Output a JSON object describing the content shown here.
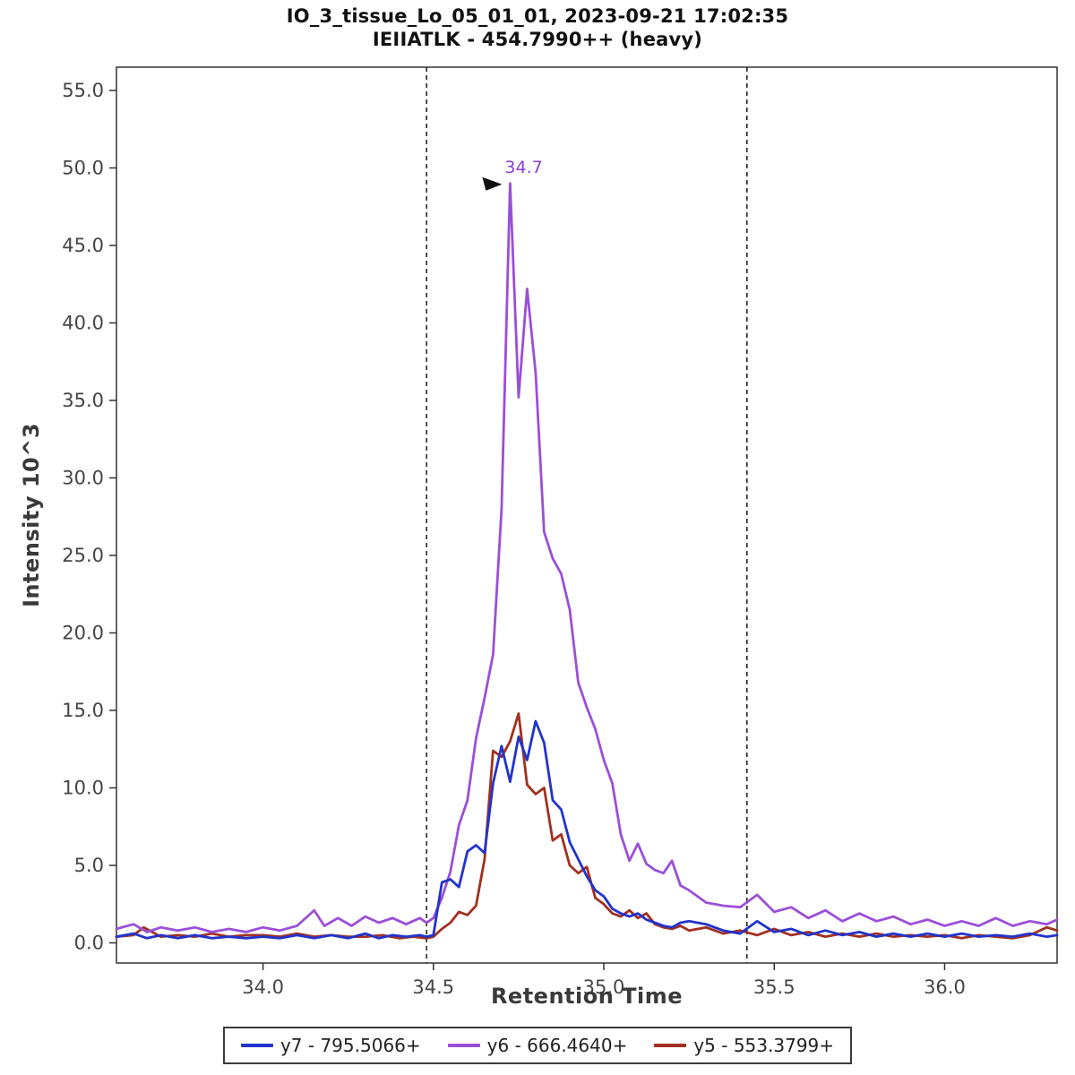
{
  "title": {
    "line1": "IO_3_tissue_Lo_05_01_01, 2023-09-21 17:02:35",
    "line2": "IEIIATLK - 454.7990++ (heavy)"
  },
  "chart_data": {
    "type": "line",
    "title": "IO_3_tissue_Lo_05_01_01, 2023-09-21 17:02:35 / IEIIATLK - 454.7990++ (heavy)",
    "xlabel": "Retention Time",
    "ylabel": "Intensity 10^3",
    "xlim": [
      33.57,
      36.33
    ],
    "ylim": [
      -1.3,
      56.5
    ],
    "grid": false,
    "legend_position": "bottom",
    "x_ticks": {
      "values": [
        34.0,
        34.5,
        35.0,
        35.5,
        36.0
      ],
      "labels": [
        "34.0",
        "34.5",
        "35.0",
        "35.5",
        "36.0"
      ]
    },
    "y_ticks": {
      "values": [
        0,
        5,
        10,
        15,
        20,
        25,
        30,
        35,
        40,
        45,
        50,
        55
      ],
      "labels": [
        "0.0",
        "5.0",
        "10.0",
        "15.0",
        "20.0",
        "25.0",
        "30.0",
        "35.0",
        "40.0",
        "45.0",
        "50.0",
        "55.0"
      ]
    },
    "integration_boundaries": [
      34.48,
      35.42
    ],
    "annotation": {
      "text": "34.7",
      "x": 34.725,
      "y": 49.0,
      "color": "#8a3fd0"
    },
    "series": [
      {
        "id": "y7",
        "name": "y7 - 795.5066+",
        "color": "#2233cc",
        "points": [
          [
            33.57,
            0.4
          ],
          [
            33.62,
            0.6
          ],
          [
            33.66,
            0.3
          ],
          [
            33.7,
            0.5
          ],
          [
            33.75,
            0.3
          ],
          [
            33.8,
            0.5
          ],
          [
            33.85,
            0.3
          ],
          [
            33.9,
            0.4
          ],
          [
            33.95,
            0.3
          ],
          [
            34.0,
            0.4
          ],
          [
            34.05,
            0.3
          ],
          [
            34.1,
            0.5
          ],
          [
            34.15,
            0.3
          ],
          [
            34.2,
            0.5
          ],
          [
            34.25,
            0.3
          ],
          [
            34.3,
            0.6
          ],
          [
            34.34,
            0.3
          ],
          [
            34.38,
            0.5
          ],
          [
            34.42,
            0.4
          ],
          [
            34.46,
            0.5
          ],
          [
            34.48,
            0.4
          ],
          [
            34.5,
            0.5
          ],
          [
            34.525,
            3.9
          ],
          [
            34.55,
            4.1
          ],
          [
            34.575,
            3.6
          ],
          [
            34.6,
            5.9
          ],
          [
            34.625,
            6.3
          ],
          [
            34.65,
            5.8
          ],
          [
            34.675,
            10.3
          ],
          [
            34.7,
            12.7
          ],
          [
            34.725,
            10.4
          ],
          [
            34.75,
            13.3
          ],
          [
            34.775,
            11.8
          ],
          [
            34.8,
            14.3
          ],
          [
            34.825,
            12.9
          ],
          [
            34.85,
            9.2
          ],
          [
            34.875,
            8.6
          ],
          [
            34.9,
            6.5
          ],
          [
            34.925,
            5.4
          ],
          [
            34.95,
            4.3
          ],
          [
            34.975,
            3.4
          ],
          [
            35.0,
            3.0
          ],
          [
            35.025,
            2.2
          ],
          [
            35.05,
            1.9
          ],
          [
            35.075,
            1.7
          ],
          [
            35.1,
            1.9
          ],
          [
            35.125,
            1.5
          ],
          [
            35.15,
            1.3
          ],
          [
            35.175,
            1.1
          ],
          [
            35.2,
            1.0
          ],
          [
            35.225,
            1.3
          ],
          [
            35.25,
            1.4
          ],
          [
            35.3,
            1.2
          ],
          [
            35.35,
            0.8
          ],
          [
            35.4,
            0.6
          ],
          [
            35.45,
            1.4
          ],
          [
            35.5,
            0.7
          ],
          [
            35.55,
            0.9
          ],
          [
            35.6,
            0.5
          ],
          [
            35.65,
            0.8
          ],
          [
            35.7,
            0.5
          ],
          [
            35.75,
            0.7
          ],
          [
            35.8,
            0.4
          ],
          [
            35.85,
            0.6
          ],
          [
            35.9,
            0.4
          ],
          [
            35.95,
            0.6
          ],
          [
            36.0,
            0.4
          ],
          [
            36.05,
            0.6
          ],
          [
            36.1,
            0.4
          ],
          [
            36.15,
            0.5
          ],
          [
            36.2,
            0.4
          ],
          [
            36.25,
            0.6
          ],
          [
            36.3,
            0.4
          ],
          [
            36.33,
            0.5
          ]
        ]
      },
      {
        "id": "y6",
        "name": "y6 - 666.4640+",
        "color": "#9b4fd8",
        "points": [
          [
            33.57,
            0.9
          ],
          [
            33.62,
            1.2
          ],
          [
            33.66,
            0.7
          ],
          [
            33.7,
            1.0
          ],
          [
            33.75,
            0.8
          ],
          [
            33.8,
            1.0
          ],
          [
            33.85,
            0.7
          ],
          [
            33.9,
            0.9
          ],
          [
            33.95,
            0.7
          ],
          [
            34.0,
            1.0
          ],
          [
            34.05,
            0.8
          ],
          [
            34.1,
            1.1
          ],
          [
            34.15,
            2.1
          ],
          [
            34.18,
            1.1
          ],
          [
            34.22,
            1.6
          ],
          [
            34.26,
            1.1
          ],
          [
            34.3,
            1.7
          ],
          [
            34.34,
            1.3
          ],
          [
            34.38,
            1.6
          ],
          [
            34.42,
            1.2
          ],
          [
            34.46,
            1.6
          ],
          [
            34.48,
            1.3
          ],
          [
            34.5,
            1.6
          ],
          [
            34.525,
            2.9
          ],
          [
            34.55,
            4.6
          ],
          [
            34.575,
            7.6
          ],
          [
            34.6,
            9.2
          ],
          [
            34.625,
            13.2
          ],
          [
            34.65,
            15.8
          ],
          [
            34.675,
            18.6
          ],
          [
            34.7,
            28.0
          ],
          [
            34.725,
            49.0
          ],
          [
            34.75,
            35.2
          ],
          [
            34.775,
            42.2
          ],
          [
            34.8,
            36.8
          ],
          [
            34.825,
            26.5
          ],
          [
            34.85,
            24.8
          ],
          [
            34.875,
            23.8
          ],
          [
            34.9,
            21.5
          ],
          [
            34.925,
            16.8
          ],
          [
            34.95,
            15.2
          ],
          [
            34.975,
            13.8
          ],
          [
            35.0,
            11.8
          ],
          [
            35.025,
            10.3
          ],
          [
            35.05,
            7.0
          ],
          [
            35.075,
            5.3
          ],
          [
            35.1,
            6.4
          ],
          [
            35.125,
            5.1
          ],
          [
            35.15,
            4.7
          ],
          [
            35.175,
            4.5
          ],
          [
            35.2,
            5.3
          ],
          [
            35.225,
            3.7
          ],
          [
            35.25,
            3.4
          ],
          [
            35.3,
            2.6
          ],
          [
            35.35,
            2.4
          ],
          [
            35.4,
            2.3
          ],
          [
            35.45,
            3.1
          ],
          [
            35.5,
            2.0
          ],
          [
            35.55,
            2.3
          ],
          [
            35.6,
            1.6
          ],
          [
            35.65,
            2.1
          ],
          [
            35.7,
            1.4
          ],
          [
            35.75,
            1.9
          ],
          [
            35.8,
            1.4
          ],
          [
            35.85,
            1.7
          ],
          [
            35.9,
            1.2
          ],
          [
            35.95,
            1.5
          ],
          [
            36.0,
            1.1
          ],
          [
            36.05,
            1.4
          ],
          [
            36.1,
            1.1
          ],
          [
            36.15,
            1.6
          ],
          [
            36.2,
            1.1
          ],
          [
            36.25,
            1.4
          ],
          [
            36.3,
            1.2
          ],
          [
            36.33,
            1.5
          ]
        ]
      },
      {
        "id": "y5",
        "name": "y5 - 553.3799+",
        "color": "#a2301f",
        "points": [
          [
            33.57,
            0.4
          ],
          [
            33.62,
            0.5
          ],
          [
            33.65,
            1.0
          ],
          [
            33.7,
            0.4
          ],
          [
            33.75,
            0.5
          ],
          [
            33.8,
            0.4
          ],
          [
            33.85,
            0.6
          ],
          [
            33.9,
            0.4
          ],
          [
            33.95,
            0.5
          ],
          [
            34.0,
            0.5
          ],
          [
            34.05,
            0.4
          ],
          [
            34.1,
            0.6
          ],
          [
            34.15,
            0.4
          ],
          [
            34.2,
            0.5
          ],
          [
            34.25,
            0.4
          ],
          [
            34.3,
            0.4
          ],
          [
            34.35,
            0.5
          ],
          [
            34.4,
            0.3
          ],
          [
            34.44,
            0.4
          ],
          [
            34.48,
            0.3
          ],
          [
            34.5,
            0.4
          ],
          [
            34.525,
            0.9
          ],
          [
            34.55,
            1.3
          ],
          [
            34.575,
            2.0
          ],
          [
            34.6,
            1.8
          ],
          [
            34.625,
            2.4
          ],
          [
            34.65,
            5.4
          ],
          [
            34.675,
            12.4
          ],
          [
            34.7,
            12.0
          ],
          [
            34.725,
            13.0
          ],
          [
            34.75,
            14.8
          ],
          [
            34.775,
            10.2
          ],
          [
            34.8,
            9.6
          ],
          [
            34.825,
            10.0
          ],
          [
            34.85,
            6.6
          ],
          [
            34.875,
            7.0
          ],
          [
            34.9,
            5.0
          ],
          [
            34.925,
            4.5
          ],
          [
            34.95,
            4.9
          ],
          [
            34.975,
            2.9
          ],
          [
            35.0,
            2.5
          ],
          [
            35.025,
            1.9
          ],
          [
            35.05,
            1.7
          ],
          [
            35.075,
            2.1
          ],
          [
            35.1,
            1.6
          ],
          [
            35.125,
            1.9
          ],
          [
            35.15,
            1.2
          ],
          [
            35.175,
            1.0
          ],
          [
            35.2,
            0.9
          ],
          [
            35.225,
            1.1
          ],
          [
            35.25,
            0.8
          ],
          [
            35.3,
            1.0
          ],
          [
            35.35,
            0.6
          ],
          [
            35.4,
            0.8
          ],
          [
            35.45,
            0.5
          ],
          [
            35.5,
            0.9
          ],
          [
            35.55,
            0.5
          ],
          [
            35.6,
            0.7
          ],
          [
            35.65,
            0.4
          ],
          [
            35.7,
            0.6
          ],
          [
            35.75,
            0.4
          ],
          [
            35.8,
            0.6
          ],
          [
            35.85,
            0.4
          ],
          [
            35.9,
            0.5
          ],
          [
            35.95,
            0.4
          ],
          [
            36.0,
            0.5
          ],
          [
            36.05,
            0.3
          ],
          [
            36.1,
            0.5
          ],
          [
            36.15,
            0.4
          ],
          [
            36.2,
            0.3
          ],
          [
            36.25,
            0.5
          ],
          [
            36.3,
            1.0
          ],
          [
            36.33,
            0.8
          ]
        ]
      }
    ]
  }
}
